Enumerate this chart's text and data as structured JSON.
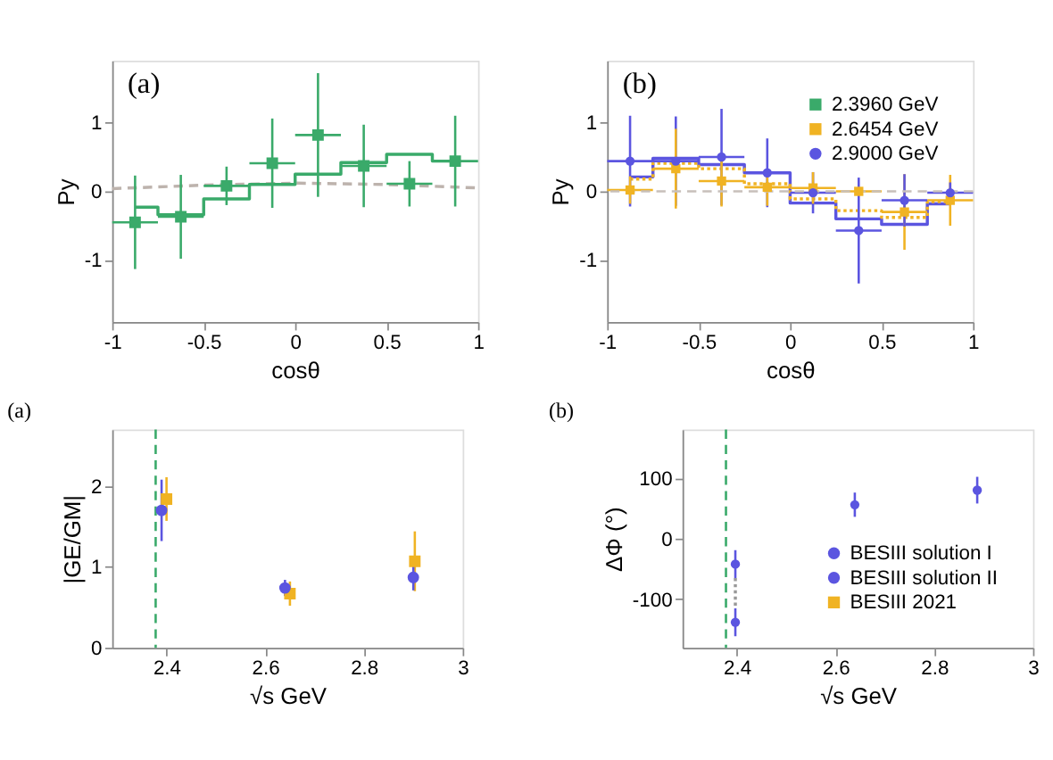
{
  "chart_data": [
    {
      "type": "scatter",
      "annotations": [
        "(a)"
      ],
      "xlabel": "cosθ",
      "ylabel": "Py",
      "xlim": [
        -1,
        1
      ],
      "ylim": [
        -1.9,
        1.9
      ],
      "xticks": [
        -1,
        -0.5,
        0,
        0.5,
        1
      ],
      "yticks": [
        -1,
        0,
        1
      ],
      "x": [
        -0.875,
        -0.625,
        -0.375,
        -0.125,
        0.125,
        0.375,
        0.625,
        0.875
      ],
      "series": [
        {
          "type": "line",
          "color": "#bdb3ad",
          "line_style": "dashed",
          "x": [
            -1,
            -0.5,
            0,
            0.5,
            1
          ],
          "values": [
            0.04,
            0.09,
            0.12,
            0.1,
            0.05
          ]
        },
        {
          "type": "step",
          "color": "#3aaa6a",
          "values": [
            -0.23,
            -0.34,
            -0.11,
            0.1,
            0.25,
            0.42,
            0.54,
            0.44
          ]
        },
        {
          "color": "#3aaa6a",
          "marker": "square",
          "values": [
            -0.45,
            -0.37,
            0.08,
            0.41,
            0.82,
            0.37,
            0.11,
            0.44
          ],
          "errors": [
            0.68,
            0.61,
            0.28,
            0.65,
            0.9,
            0.6,
            0.33,
            0.66
          ],
          "xerrors": [
            0.125,
            0.125,
            0.125,
            0.125,
            0.125,
            0.125,
            0.125,
            0.125
          ]
        }
      ]
    },
    {
      "type": "scatter",
      "annotations": [
        "(b)"
      ],
      "xlabel": "cosθ",
      "ylabel": "Py",
      "xlim": [
        -1,
        1
      ],
      "ylim": [
        -1.9,
        1.9
      ],
      "xticks": [
        -1,
        -0.5,
        0,
        0.5,
        1
      ],
      "yticks": [
        -1,
        0,
        1
      ],
      "x": [
        -0.875,
        -0.625,
        -0.375,
        -0.125,
        0.125,
        0.375,
        0.625,
        0.875
      ],
      "legend": "top right",
      "ref_lines": [
        {
          "axis": "y",
          "value": 0,
          "color": "#c8c0bb",
          "line_style": "dashed"
        }
      ],
      "series": [
        {
          "type": "step",
          "color": "#5b55e0",
          "values": [
            0.21,
            0.48,
            0.39,
            0.27,
            -0.17,
            -0.4,
            -0.48,
            -0.18
          ]
        },
        {
          "type": "step",
          "color": "#f0b323",
          "line_style": "dotted",
          "values": [
            0.18,
            0.41,
            0.33,
            0.11,
            -0.11,
            -0.28,
            -0.38,
            -0.15
          ]
        },
        {
          "name": "2.3960 GeV",
          "color": "#3aaa6a",
          "marker": "square",
          "values": [
            null,
            null,
            null,
            null,
            null,
            null,
            null,
            null
          ]
        },
        {
          "name": "2.6454 GeV",
          "color": "#f0b323",
          "marker": "square",
          "values": [
            0.02,
            0.33,
            0.15,
            0.06,
            0.05,
            0.0,
            -0.3,
            -0.13
          ],
          "errors": [
            0.2,
            0.58,
            0.37,
            0.27,
            0.23,
            0.06,
            0.55,
            0.37
          ],
          "xerrors": [
            0.125,
            0.125,
            0.125,
            0.125,
            0.125,
            0.125,
            0.125,
            0.125
          ]
        },
        {
          "name": "2.9000 GeV",
          "color": "#5b55e0",
          "marker": "circle",
          "values": [
            0.44,
            0.44,
            0.5,
            0.27,
            -0.02,
            -0.57,
            -0.13,
            -0.02
          ],
          "errors": [
            0.66,
            0.65,
            0.7,
            0.5,
            0.3,
            0.77,
            0.38,
            0.15
          ],
          "xerrors": [
            0.125,
            0.125,
            0.125,
            0.125,
            0.125,
            0.125,
            0.125,
            0.125
          ]
        }
      ]
    },
    {
      "type": "scatter",
      "title": "(a)",
      "xlabel": "√s GeV",
      "ylabel": "|GE/GM|",
      "xlim": [
        2.29,
        3
      ],
      "ylim": [
        0,
        2.7
      ],
      "xticks": [
        2.4,
        2.6,
        2.8,
        3
      ],
      "yticks": [
        0,
        1,
        2
      ],
      "ref_lines": [
        {
          "axis": "x",
          "value": 2.378,
          "color": "#3aaa6a",
          "line_style": "dashed"
        }
      ],
      "series": [
        {
          "color": "#f0b323",
          "marker": "square",
          "x": [
            2.4,
            2.65,
            2.903
          ],
          "values": [
            1.84,
            0.67,
            1.07
          ],
          "errors": [
            0.27,
            0.15,
            0.37
          ]
        },
        {
          "color": "#5b55e0",
          "marker": "circle",
          "x": [
            2.39,
            2.64,
            2.9
          ],
          "values": [
            1.7,
            0.74,
            0.87
          ],
          "errors": [
            0.38,
            0.1,
            0.16
          ]
        }
      ]
    },
    {
      "type": "scatter",
      "title": "(b)",
      "xlabel": "√s GeV",
      "ylabel": "ΔΦ (°)",
      "xlim": [
        2.29,
        3
      ],
      "ylim": [
        -180,
        180
      ],
      "xticks": [
        2.4,
        2.6,
        2.8,
        3
      ],
      "yticks": [
        -100,
        0,
        100
      ],
      "legend": "bottom right",
      "ref_lines": [
        {
          "axis": "x",
          "value": 2.378,
          "color": "#3aaa6a",
          "line_style": "dashed"
        }
      ],
      "series": [
        {
          "type": "line",
          "color": "#999999",
          "line_style": "dotted",
          "x": [
            2.397,
            2.397
          ],
          "values": [
            -65,
            -115
          ]
        },
        {
          "name": "BESIII solution I",
          "color": "#5b55e0",
          "marker": "circle",
          "x": [
            2.397,
            2.639,
            2.887
          ],
          "values": [
            -42,
            56,
            80
          ],
          "errors": [
            23,
            20,
            22
          ]
        },
        {
          "name": "BESIII solution II",
          "color": "#5b55e0",
          "marker": "circle",
          "x": [
            2.397
          ],
          "values": [
            -138
          ],
          "errors": [
            23
          ]
        },
        {
          "name": "BESIII 2021",
          "color": "#f0b323",
          "marker": "square"
        }
      ]
    }
  ]
}
